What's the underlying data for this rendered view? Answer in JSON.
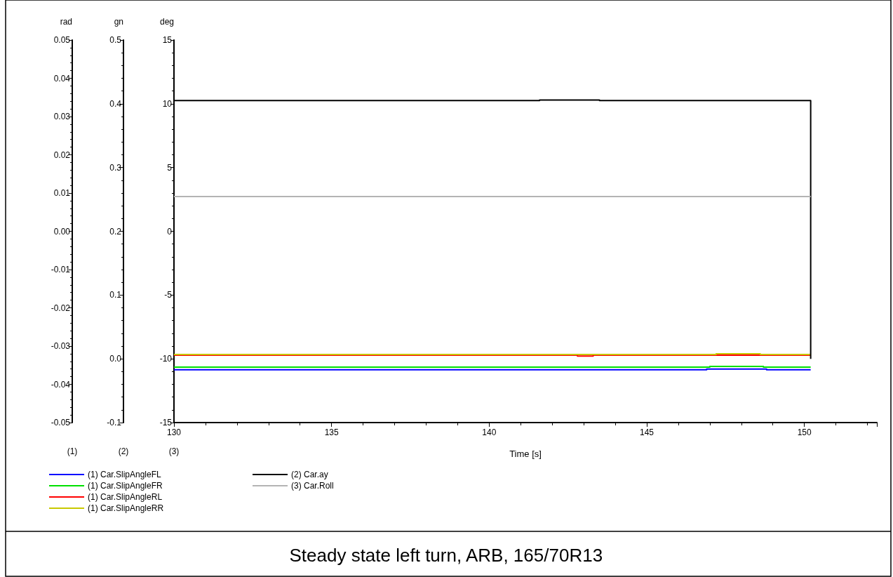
{
  "chart_data": {
    "type": "line",
    "title": "Steady state left turn, ARB, 165/70R13",
    "xlabel": "Time [s]",
    "ylabel": "rad",
    "y2label": "gn",
    "y3label": "deg",
    "annotations": [
      "(1)",
      "(2)",
      "(3)"
    ],
    "xlim": [
      130,
      152.3
    ],
    "xticks": [
      130,
      135,
      140,
      145,
      150
    ],
    "ylim": [
      -0.05,
      0.05
    ],
    "yticks": [
      -0.05,
      -0.04,
      -0.03,
      -0.02,
      -0.01,
      {
        "value": 0,
        "label": "0.00"
      },
      0.01,
      0.02,
      0.03,
      0.04,
      0.05
    ],
    "y2lim": [
      -0.1,
      0.5
    ],
    "y2ticks": [
      -0.1,
      {
        "value": 0,
        "label": "0.0"
      },
      0.1,
      0.2,
      0.3,
      0.4,
      0.5
    ],
    "y3lim": [
      -15,
      15
    ],
    "y3ticks": [
      -15,
      -10,
      -5,
      0,
      5,
      10,
      15
    ],
    "marker": "none",
    "legend": "bottom",
    "series": [
      {
        "name": "(1) Car.SlipAngleFL",
        "color": "#0000ff",
        "x": [
          130,
          146.9,
          146.9,
          148.8,
          148.8,
          150.2
        ],
        "values": [
          -0.0362,
          -0.0362,
          -0.036,
          -0.036,
          -0.0362,
          -0.0362
        ]
      },
      {
        "name": "(1) Car.SlipAngleFR",
        "color": "#00e000",
        "x": [
          130,
          147,
          147,
          148.7,
          148.7,
          150.2
        ],
        "values": [
          -0.0355,
          -0.0355,
          -0.0353,
          -0.0353,
          -0.0355,
          -0.0355
        ]
      },
      {
        "name": "(1) Car.SlipAngleRL",
        "color": "#ff0000",
        "x": [
          130,
          142.8,
          142.8,
          143.3,
          143.3,
          150.2
        ],
        "values": [
          -0.0324,
          -0.0324,
          -0.0326,
          -0.0326,
          -0.0324,
          -0.0324
        ]
      },
      {
        "name": "(1) Car.SlipAngleRR",
        "color": "#c8c800",
        "x": [
          130,
          147.2,
          147.2,
          148.6,
          148.6,
          150.2
        ],
        "values": [
          -0.0322,
          -0.0322,
          -0.032,
          -0.032,
          -0.0322,
          -0.0322
        ]
      },
      {
        "name": "(2) Car.ay",
        "color": "#000000",
        "axis": "y2",
        "x": [
          130,
          141.6,
          141.6,
          143.5,
          143.5,
          150.2,
          150.2
        ],
        "values": [
          0.405,
          0.405,
          0.406,
          0.406,
          0.405,
          0.405,
          0.0
        ]
      },
      {
        "name": "(3) Car.Roll",
        "color": "#b4b4b4",
        "axis": "y3",
        "x": [
          130,
          150.2
        ],
        "values": [
          2.72,
          2.72
        ]
      }
    ]
  }
}
